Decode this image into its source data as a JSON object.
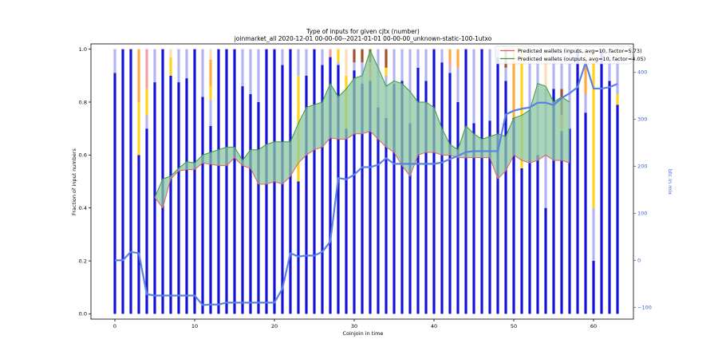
{
  "chart_data": {
    "type": "bar",
    "title": "Type of inputs for given cjtx (number)",
    "subtitle": "joinmarket_all 2020-12-01 00-00-00--2021-01-01 00-00-00_unknown-static-100-1utxo",
    "xlabel": "Coinjoin in time",
    "ylabel": "Fraction of input numbers",
    "y2label": "btc in mix",
    "xlim": [
      -3,
      65
    ],
    "ylim": [
      -0.02,
      1.02
    ],
    "y2lim": [
      -125,
      460
    ],
    "xticks": [
      0,
      10,
      20,
      30,
      40,
      50,
      60
    ],
    "yticks": [
      0.0,
      0.2,
      0.4,
      0.6,
      0.8,
      1.0
    ],
    "y2ticks": [
      -100,
      0,
      100,
      200,
      300,
      400
    ],
    "legend": {
      "placement": "top-right",
      "entries": [
        {
          "label": "Predicted wallets (inputs, avg=10, factor=5.73)",
          "color": "#e06060"
        },
        {
          "label": "Predicted wallets (outputs, avg=10, factor=4.05)",
          "color": "#3a9a3a"
        }
      ]
    },
    "colors": {
      "fresh": "#1414d2",
      "light": "#b4b4f0",
      "yellow": "#ffd21e",
      "orange": "#ffaa3c",
      "pink": "#f0a0a0",
      "brown": "#a0522d",
      "peach": "#ffdcb4",
      "btc_line": "#5a82e6",
      "fill": "#8cc8a0",
      "inputs_line": "#e06060",
      "outputs_line": "#3a9a3a"
    },
    "bars": {
      "x": [
        0,
        1,
        2,
        3,
        4,
        5,
        6,
        7,
        8,
        9,
        10,
        11,
        12,
        13,
        14,
        15,
        16,
        17,
        18,
        19,
        20,
        21,
        22,
        23,
        24,
        25,
        26,
        27,
        28,
        29,
        30,
        31,
        32,
        33,
        34,
        35,
        36,
        37,
        38,
        39,
        40,
        41,
        42,
        43,
        44,
        45,
        46,
        47,
        48,
        49,
        50,
        51,
        52,
        53,
        54,
        55,
        56,
        57,
        58,
        59,
        60,
        61,
        62,
        63
      ],
      "segments": [
        [
          [
            "fresh",
            0.91
          ],
          [
            "light",
            0.09
          ]
        ],
        [
          [
            "fresh",
            1.0
          ]
        ],
        [
          [
            "fresh",
            1.0
          ]
        ],
        [
          [
            "fresh",
            0.6
          ],
          [
            "yellow",
            0.2
          ],
          [
            "orange",
            0.2
          ]
        ],
        [
          [
            "fresh",
            0.7
          ],
          [
            "light",
            0.05
          ],
          [
            "yellow",
            0.1
          ],
          [
            "pink",
            0.15
          ]
        ],
        [
          [
            "fresh",
            0.875
          ],
          [
            "light",
            0.125
          ]
        ],
        [
          [
            "fresh",
            1.0
          ]
        ],
        [
          [
            "fresh",
            0.9
          ],
          [
            "yellow",
            0.07
          ],
          [
            "peach",
            0.03
          ]
        ],
        [
          [
            "fresh",
            0.875
          ],
          [
            "light",
            0.125
          ]
        ],
        [
          [
            "fresh",
            0.89
          ],
          [
            "light",
            0.11
          ]
        ],
        [
          [
            "fresh",
            1.0
          ]
        ],
        [
          [
            "fresh",
            0.82
          ],
          [
            "light",
            0.18
          ]
        ],
        [
          [
            "fresh",
            0.71
          ],
          [
            "light",
            0.1
          ],
          [
            "yellow",
            0.05
          ],
          [
            "orange",
            0.1
          ],
          [
            "peach",
            0.04
          ]
        ],
        [
          [
            "fresh",
            1.0
          ]
        ],
        [
          [
            "fresh",
            1.0
          ]
        ],
        [
          [
            "fresh",
            1.0
          ]
        ],
        [
          [
            "fresh",
            0.86
          ],
          [
            "light",
            0.14
          ]
        ],
        [
          [
            "fresh",
            0.83
          ],
          [
            "light",
            0.17
          ]
        ],
        [
          [
            "fresh",
            0.8
          ],
          [
            "light",
            0.2
          ]
        ],
        [
          [
            "fresh",
            1.0
          ]
        ],
        [
          [
            "fresh",
            1.0
          ]
        ],
        [
          [
            "fresh",
            0.94
          ],
          [
            "light",
            0.06
          ]
        ],
        [
          [
            "fresh",
            1.0
          ]
        ],
        [
          [
            "fresh",
            0.5
          ],
          [
            "yellow",
            0.4
          ],
          [
            "light",
            0.1
          ]
        ],
        [
          [
            "fresh",
            0.9
          ],
          [
            "light",
            0.1
          ]
        ],
        [
          [
            "fresh",
            1.0
          ]
        ],
        [
          [
            "fresh",
            0.94
          ],
          [
            "light",
            0.06
          ]
        ],
        [
          [
            "fresh",
            0.97
          ],
          [
            "pink",
            0.03
          ]
        ],
        [
          [
            "fresh",
            0.94
          ],
          [
            "light",
            0.01
          ],
          [
            "yellow",
            0.05
          ]
        ],
        [
          [
            "fresh",
            0.7
          ],
          [
            "yellow",
            0.2
          ],
          [
            "peach",
            0.1
          ]
        ],
        [
          [
            "fresh",
            0.92
          ],
          [
            "light",
            0.03
          ],
          [
            "brown",
            0.05
          ]
        ],
        [
          [
            "fresh",
            0.87
          ],
          [
            "light",
            0.08
          ],
          [
            "brown",
            0.05
          ]
        ],
        [
          [
            "fresh",
            0.88
          ],
          [
            "orange",
            0.07
          ],
          [
            "brown",
            0.05
          ]
        ],
        [
          [
            "fresh",
            0.78
          ],
          [
            "light",
            0.22
          ]
        ],
        [
          [
            "fresh",
            0.74
          ],
          [
            "light",
            0.16
          ],
          [
            "yellow",
            0.03
          ],
          [
            "brown",
            0.07
          ]
        ],
        [
          [
            "fresh",
            0.87
          ],
          [
            "light",
            0.13
          ]
        ],
        [
          [
            "fresh",
            0.88
          ],
          [
            "light",
            0.12
          ]
        ],
        [
          [
            "fresh",
            0.72
          ],
          [
            "light",
            0.28
          ]
        ],
        [
          [
            "fresh",
            0.93
          ],
          [
            "light",
            0.07
          ]
        ],
        [
          [
            "fresh",
            0.88
          ],
          [
            "light",
            0.12
          ]
        ],
        [
          [
            "fresh",
            1.0
          ]
        ],
        [
          [
            "fresh",
            0.95
          ],
          [
            "light",
            0.05
          ]
        ],
        [
          [
            "fresh",
            0.91
          ],
          [
            "light",
            0.02
          ],
          [
            "pink",
            0.03
          ],
          [
            "orange",
            0.04
          ]
        ],
        [
          [
            "fresh",
            0.8
          ],
          [
            "light",
            0.13
          ],
          [
            "orange",
            0.07
          ]
        ],
        [
          [
            "fresh",
            1.0
          ]
        ],
        [
          [
            "fresh",
            0.72
          ],
          [
            "light",
            0.28
          ]
        ],
        [
          [
            "fresh",
            1.0
          ]
        ],
        [
          [
            "fresh",
            0.73
          ],
          [
            "light",
            0.27
          ]
        ],
        [
          [
            "fresh",
            0.97
          ],
          [
            "light",
            0.03
          ]
        ],
        [
          [
            "fresh",
            0.88
          ],
          [
            "light",
            0.05
          ],
          [
            "brown",
            0.07
          ]
        ],
        [
          [
            "fresh",
            0.74
          ],
          [
            "orange",
            0.26
          ]
        ],
        [
          [
            "fresh",
            0.55
          ],
          [
            "yellow",
            0.45
          ]
        ],
        [
          [
            "fresh",
            0.77
          ],
          [
            "light",
            0.23
          ]
        ],
        [
          [
            "fresh",
            0.6
          ],
          [
            "light",
            0.4
          ]
        ],
        [
          [
            "fresh",
            0.4
          ],
          [
            "light",
            0.45
          ],
          [
            "peach",
            0.15
          ]
        ],
        [
          [
            "fresh",
            0.85
          ],
          [
            "light",
            0.15
          ]
        ],
        [
          [
            "fresh",
            0.69
          ],
          [
            "orange",
            0.06
          ],
          [
            "brown",
            0.1
          ],
          [
            "light",
            0.15
          ]
        ],
        [
          [
            "fresh",
            0.7
          ],
          [
            "light",
            0.3
          ]
        ],
        [
          [
            "fresh",
            1.0
          ]
        ],
        [
          [
            "fresh",
            0.76
          ],
          [
            "light",
            0.07
          ],
          [
            "orange",
            0.17
          ]
        ],
        [
          [
            "fresh",
            0.2
          ],
          [
            "light",
            0.2
          ],
          [
            "yellow",
            0.6
          ]
        ],
        [
          [
            "fresh",
            1.0
          ]
        ],
        [
          [
            "fresh",
            0.88
          ],
          [
            "light",
            0.12
          ]
        ],
        [
          [
            "fresh",
            0.79
          ],
          [
            "yellow",
            0.04
          ],
          [
            "light",
            0.14
          ],
          [
            "orange",
            0.03
          ]
        ]
      ]
    },
    "btc_in_mix": {
      "x": [
        0,
        1,
        2,
        3,
        4,
        5,
        6,
        7,
        8,
        9,
        10,
        11,
        12,
        13,
        14,
        15,
        16,
        17,
        18,
        19,
        20,
        21,
        22,
        23,
        24,
        25,
        26,
        27,
        28,
        29,
        30,
        31,
        32,
        33,
        34,
        35,
        36,
        37,
        38,
        39,
        40,
        41,
        42,
        43,
        44,
        45,
        46,
        47,
        48,
        49,
        50,
        51,
        52,
        53,
        54,
        55,
        56,
        57,
        58,
        59,
        60,
        61,
        62,
        63
      ],
      "y": [
        0,
        0,
        18,
        15,
        -72,
        -75,
        -75,
        -75,
        -75,
        -75,
        -75,
        -95,
        -94,
        -94,
        -90,
        -90,
        -90,
        -90,
        -90,
        -90,
        -90,
        -60,
        15,
        8,
        10,
        10,
        18,
        40,
        175,
        172,
        182,
        198,
        198,
        203,
        217,
        205,
        205,
        205,
        205,
        205,
        205,
        208,
        215,
        222,
        230,
        232,
        232,
        232,
        232,
        310,
        318,
        322,
        325,
        335,
        335,
        330,
        345,
        355,
        368,
        420,
        365,
        365,
        368,
        375
      ]
    },
    "predicted_inputs": {
      "x": [
        5,
        6,
        7,
        8,
        9,
        10,
        11,
        12,
        13,
        14,
        15,
        16,
        17,
        18,
        19,
        20,
        21,
        22,
        23,
        24,
        25,
        26,
        27,
        28,
        29,
        30,
        31,
        32,
        33,
        34,
        35,
        36,
        37,
        38,
        39,
        40,
        41,
        42,
        43,
        44,
        45,
        46,
        47,
        48,
        49,
        50,
        51,
        52,
        53,
        54,
        55,
        56,
        57
      ],
      "y": [
        0.44,
        0.4,
        0.51,
        0.54,
        0.545,
        0.545,
        0.57,
        0.565,
        0.56,
        0.56,
        0.59,
        0.56,
        0.55,
        0.49,
        0.49,
        0.5,
        0.49,
        0.52,
        0.57,
        0.6,
        0.62,
        0.63,
        0.665,
        0.66,
        0.66,
        0.68,
        0.68,
        0.69,
        0.66,
        0.63,
        0.61,
        0.56,
        0.52,
        0.6,
        0.61,
        0.61,
        0.6,
        0.6,
        0.59,
        0.59,
        0.59,
        0.59,
        0.59,
        0.51,
        0.54,
        0.6,
        0.58,
        0.57,
        0.58,
        0.6,
        0.58,
        0.58,
        0.57
      ]
    },
    "predicted_outputs": {
      "x": [
        5,
        6,
        7,
        8,
        9,
        10,
        11,
        12,
        13,
        14,
        15,
        16,
        17,
        18,
        19,
        20,
        21,
        22,
        23,
        24,
        25,
        26,
        27,
        28,
        29,
        30,
        31,
        32,
        33,
        34,
        35,
        36,
        37,
        38,
        39,
        40,
        41,
        42,
        43,
        44,
        45,
        46,
        47,
        48,
        49,
        50,
        51,
        52,
        53,
        54,
        55,
        56,
        57
      ],
      "y": [
        0.44,
        0.51,
        0.52,
        0.55,
        0.575,
        0.57,
        0.6,
        0.61,
        0.62,
        0.63,
        0.63,
        0.58,
        0.62,
        0.62,
        0.64,
        0.65,
        0.65,
        0.65,
        0.72,
        0.78,
        0.79,
        0.8,
        0.87,
        0.82,
        0.85,
        0.89,
        0.9,
        0.995,
        0.93,
        0.86,
        0.88,
        0.87,
        0.84,
        0.8,
        0.8,
        0.78,
        0.7,
        0.64,
        0.62,
        0.71,
        0.68,
        0.66,
        0.67,
        0.68,
        0.67,
        0.74,
        0.75,
        0.77,
        0.87,
        0.86,
        0.8,
        0.82,
        0.8
      ]
    }
  }
}
